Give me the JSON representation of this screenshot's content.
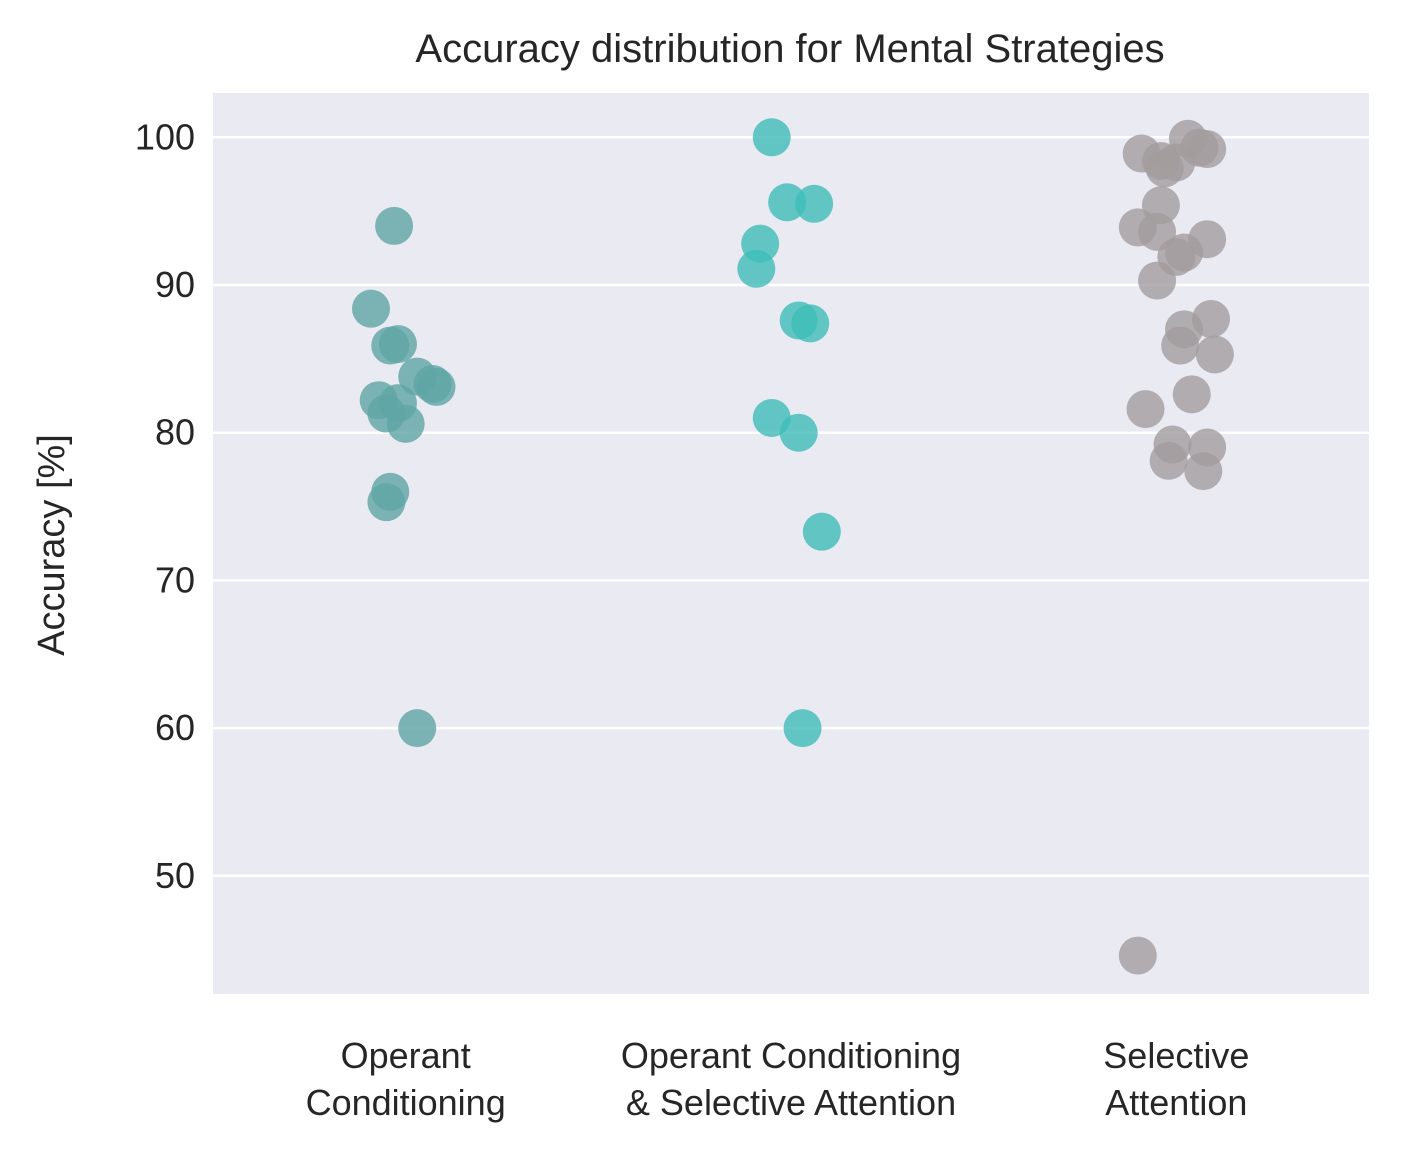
{
  "chart_data": {
    "type": "scatter",
    "subtype": "strip",
    "title": "Accuracy distribution for Mental Strategies",
    "xlabel": "",
    "ylabel": "Accuracy [%]",
    "ylim": [
      42,
      103
    ],
    "yticks": [
      50,
      60,
      70,
      80,
      90,
      100
    ],
    "grid": true,
    "legend": "none",
    "background_color": "#EAEAF2",
    "categories": [
      [
        "Operant",
        "Conditioning"
      ],
      [
        "Operant Conditioning",
        "& Selective Attention"
      ],
      [
        "Selective",
        "Attention"
      ]
    ],
    "series": [
      {
        "color": "#5FA5A5",
        "points": [
          {
            "jitter": -0.03,
            "value": 94.0
          },
          {
            "jitter": -0.09,
            "value": 88.4
          },
          {
            "jitter": -0.02,
            "value": 86.0
          },
          {
            "jitter": -0.04,
            "value": 85.9
          },
          {
            "jitter": 0.03,
            "value": 83.8
          },
          {
            "jitter": 0.07,
            "value": 83.3
          },
          {
            "jitter": 0.08,
            "value": 83.1
          },
          {
            "jitter": -0.07,
            "value": 82.2
          },
          {
            "jitter": -0.02,
            "value": 82.0
          },
          {
            "jitter": -0.05,
            "value": 81.3
          },
          {
            "jitter": 0.0,
            "value": 80.6
          },
          {
            "jitter": -0.04,
            "value": 76.0
          },
          {
            "jitter": -0.05,
            "value": 75.3
          },
          {
            "jitter": 0.03,
            "value": 60.0
          }
        ]
      },
      {
        "color": "#3EBDB7",
        "points": [
          {
            "jitter": -0.05,
            "value": 100.0
          },
          {
            "jitter": -0.01,
            "value": 95.6
          },
          {
            "jitter": 0.06,
            "value": 95.5
          },
          {
            "jitter": -0.08,
            "value": 92.8
          },
          {
            "jitter": -0.09,
            "value": 91.1
          },
          {
            "jitter": 0.02,
            "value": 87.6
          },
          {
            "jitter": 0.05,
            "value": 87.4
          },
          {
            "jitter": -0.05,
            "value": 81.0
          },
          {
            "jitter": 0.02,
            "value": 80.0
          },
          {
            "jitter": 0.08,
            "value": 73.3
          },
          {
            "jitter": 0.03,
            "value": 60.0
          }
        ]
      },
      {
        "color": "#A29C9E",
        "points": [
          {
            "jitter": 0.03,
            "value": 99.9
          },
          {
            "jitter": 0.08,
            "value": 99.2
          },
          {
            "jitter": 0.06,
            "value": 99.3
          },
          {
            "jitter": -0.09,
            "value": 98.9
          },
          {
            "jitter": -0.04,
            "value": 98.4
          },
          {
            "jitter": 0.0,
            "value": 98.3
          },
          {
            "jitter": -0.03,
            "value": 97.9
          },
          {
            "jitter": -0.04,
            "value": 95.4
          },
          {
            "jitter": -0.1,
            "value": 93.9
          },
          {
            "jitter": -0.05,
            "value": 93.6
          },
          {
            "jitter": 0.08,
            "value": 93.1
          },
          {
            "jitter": 0.02,
            "value": 92.2
          },
          {
            "jitter": 0.0,
            "value": 91.9
          },
          {
            "jitter": -0.05,
            "value": 90.3
          },
          {
            "jitter": 0.09,
            "value": 87.7
          },
          {
            "jitter": 0.02,
            "value": 87.0
          },
          {
            "jitter": 0.01,
            "value": 85.9
          },
          {
            "jitter": 0.1,
            "value": 85.3
          },
          {
            "jitter": 0.04,
            "value": 82.6
          },
          {
            "jitter": -0.08,
            "value": 81.6
          },
          {
            "jitter": -0.01,
            "value": 79.2
          },
          {
            "jitter": 0.08,
            "value": 79.0
          },
          {
            "jitter": -0.02,
            "value": 78.1
          },
          {
            "jitter": 0.07,
            "value": 77.4
          },
          {
            "jitter": -0.1,
            "value": 44.6
          }
        ]
      }
    ]
  }
}
